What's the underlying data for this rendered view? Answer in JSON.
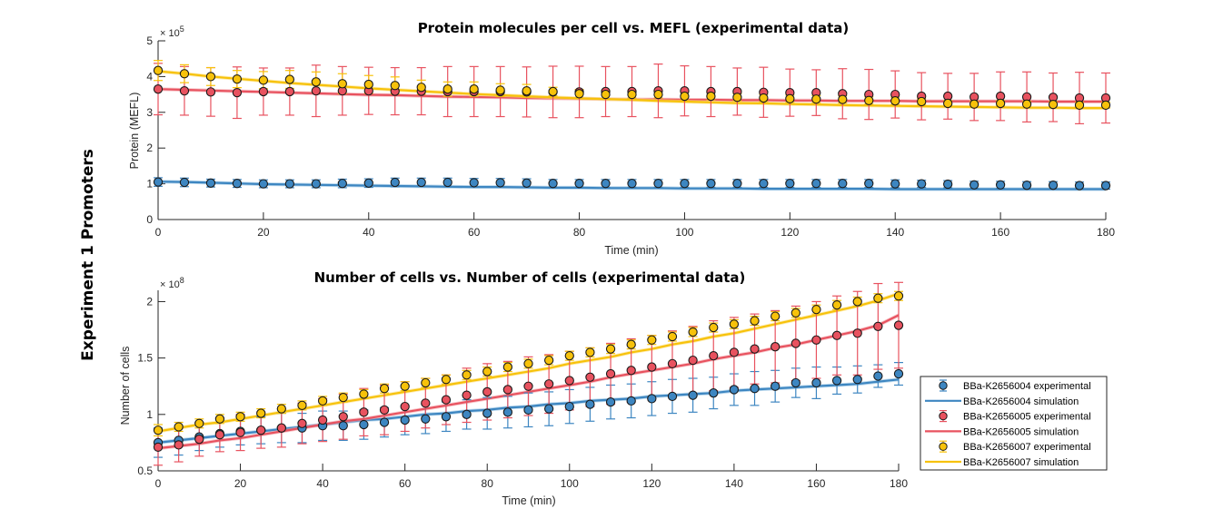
{
  "super_title": "Experiment 1 Promoters",
  "legend": {
    "placement": "bottom-right of lower chart",
    "entries": [
      {
        "label": "BBa-K2656004 experimental",
        "kind": "marker",
        "series": 0
      },
      {
        "label": "BBa-K2656004 simulation",
        "kind": "line",
        "series": 0
      },
      {
        "label": "BBa-K2656005 experimental",
        "kind": "marker",
        "series": 1
      },
      {
        "label": "BBa-K2656005 simulation",
        "kind": "line",
        "series": 1
      },
      {
        "label": "BBa-K2656007 experimental",
        "kind": "marker",
        "series": 2
      },
      {
        "label": "BBa-K2656007 simulation",
        "kind": "line",
        "series": 2
      }
    ]
  },
  "colors": {
    "BBa-K2656004": "#3d86c1",
    "BBa-K2656005": "#e8525f",
    "BBa-K2656007": "#f7c20a"
  },
  "chart_data": [
    {
      "type": "line",
      "title": "Protein molecules per cell vs. MEFL (experimental data)",
      "xlabel": "Time (min)",
      "ylabel": "Protein (MEFL)",
      "exponent_label": "× 10^5",
      "exponent_base": "× 10",
      "exponent_power": "5",
      "xlim": [
        0,
        180
      ],
      "ylim": [
        0,
        5
      ],
      "xticks": [
        0,
        20,
        40,
        60,
        80,
        100,
        120,
        140,
        160,
        180
      ],
      "yticks": [
        0,
        1,
        2,
        3,
        4,
        5
      ],
      "grid": false,
      "x": [
        0,
        5,
        10,
        15,
        20,
        25,
        30,
        35,
        40,
        45,
        50,
        55,
        60,
        65,
        70,
        75,
        80,
        85,
        90,
        95,
        100,
        105,
        110,
        115,
        120,
        125,
        130,
        135,
        140,
        145,
        150,
        155,
        160,
        165,
        170,
        175,
        180
      ],
      "series": [
        {
          "name": "BBa-K2656004",
          "experimental": [
            1.05,
            1.04,
            1.02,
            1.01,
            1.0,
            1.0,
            1.0,
            1.01,
            1.02,
            1.04,
            1.04,
            1.04,
            1.03,
            1.03,
            1.02,
            1.01,
            1.01,
            1.01,
            1.01,
            1.01,
            1.01,
            1.01,
            1.01,
            1.01,
            1.01,
            1.01,
            1.01,
            1.01,
            1.0,
            1.0,
            0.99,
            0.97,
            0.97,
            0.96,
            0.96,
            0.95,
            0.95
          ],
          "error": [
            0.12,
            0.12,
            0.11,
            0.11,
            0.11,
            0.11,
            0.11,
            0.12,
            0.12,
            0.12,
            0.12,
            0.12,
            0.12,
            0.12,
            0.12,
            0.11,
            0.11,
            0.11,
            0.11,
            0.11,
            0.11,
            0.11,
            0.11,
            0.11,
            0.11,
            0.11,
            0.11,
            0.11,
            0.11,
            0.1,
            0.1,
            0.1,
            0.1,
            0.1,
            0.1,
            0.1,
            0.1
          ],
          "simulation": [
            1.06,
            1.05,
            1.03,
            1.01,
            0.99,
            0.98,
            0.97,
            0.96,
            0.95,
            0.94,
            0.93,
            0.92,
            0.91,
            0.91,
            0.9,
            0.89,
            0.89,
            0.88,
            0.88,
            0.88,
            0.87,
            0.87,
            0.87,
            0.86,
            0.86,
            0.86,
            0.86,
            0.86,
            0.85,
            0.85,
            0.85,
            0.85,
            0.85,
            0.85,
            0.85,
            0.85,
            0.85
          ]
        },
        {
          "name": "BBa-K2656005",
          "experimental": [
            3.65,
            3.6,
            3.57,
            3.55,
            3.58,
            3.58,
            3.6,
            3.6,
            3.6,
            3.59,
            3.59,
            3.58,
            3.58,
            3.58,
            3.57,
            3.57,
            3.57,
            3.58,
            3.58,
            3.6,
            3.6,
            3.58,
            3.58,
            3.56,
            3.55,
            3.55,
            3.52,
            3.5,
            3.5,
            3.45,
            3.45,
            3.43,
            3.45,
            3.43,
            3.42,
            3.4,
            3.4
          ],
          "error": [
            0.72,
            0.68,
            0.68,
            0.72,
            0.66,
            0.66,
            0.72,
            0.68,
            0.66,
            0.66,
            0.66,
            0.7,
            0.7,
            0.7,
            0.7,
            0.72,
            0.72,
            0.7,
            0.7,
            0.75,
            0.7,
            0.7,
            0.66,
            0.7,
            0.66,
            0.64,
            0.7,
            0.7,
            0.66,
            0.66,
            0.64,
            0.66,
            0.68,
            0.7,
            0.68,
            0.72,
            0.7
          ],
          "simulation": [
            3.65,
            3.63,
            3.61,
            3.59,
            3.57,
            3.55,
            3.53,
            3.51,
            3.49,
            3.48,
            3.46,
            3.44,
            3.43,
            3.42,
            3.4,
            3.39,
            3.38,
            3.37,
            3.36,
            3.36,
            3.35,
            3.35,
            3.34,
            3.34,
            3.33,
            3.33,
            3.32,
            3.32,
            3.32,
            3.31,
            3.31,
            3.31,
            3.31,
            3.31,
            3.3,
            3.3,
            3.3
          ]
        },
        {
          "name": "BBa-K2656007",
          "experimental": [
            4.17,
            4.08,
            4.0,
            3.93,
            3.9,
            3.92,
            3.85,
            3.8,
            3.78,
            3.75,
            3.7,
            3.65,
            3.65,
            3.62,
            3.6,
            3.58,
            3.52,
            3.5,
            3.5,
            3.5,
            3.45,
            3.45,
            3.42,
            3.4,
            3.38,
            3.37,
            3.36,
            3.33,
            3.32,
            3.3,
            3.25,
            3.23,
            3.25,
            3.23,
            3.22,
            3.2,
            3.2
          ],
          "error": [
            0.28,
            0.25,
            0.25,
            0.24,
            0.24,
            0.25,
            0.28,
            0.28,
            0.25,
            0.24,
            0.2,
            0.2,
            0.2,
            0.18,
            0.18,
            0.12,
            0.12,
            0.12,
            0.1,
            0.1,
            0.1,
            0.1,
            0.1,
            0.1,
            0.1,
            0.1,
            0.1,
            0.1,
            0.1,
            0.08,
            0.08,
            0.08,
            0.08,
            0.08,
            0.08,
            0.08,
            0.08
          ],
          "simulation": [
            4.15,
            4.08,
            4.0,
            3.94,
            3.88,
            3.82,
            3.77,
            3.72,
            3.67,
            3.63,
            3.59,
            3.55,
            3.51,
            3.48,
            3.45,
            3.42,
            3.39,
            3.37,
            3.35,
            3.32,
            3.3,
            3.28,
            3.26,
            3.25,
            3.23,
            3.22,
            3.2,
            3.19,
            3.18,
            3.17,
            3.16,
            3.15,
            3.14,
            3.13,
            3.13,
            3.12,
            3.12
          ]
        }
      ]
    },
    {
      "type": "line",
      "title": "Number of cells vs. Number of cells (experimental data)",
      "xlabel": "Time (min)",
      "ylabel": "Number of cells",
      "exponent_label": "× 10^8",
      "exponent_base": "× 10",
      "exponent_power": "8",
      "xlim": [
        0,
        180
      ],
      "ylim": [
        0.5,
        2.1
      ],
      "xticks": [
        0,
        20,
        40,
        60,
        80,
        100,
        120,
        140,
        160,
        180
      ],
      "yticks": [
        0.5,
        1,
        1.5,
        2
      ],
      "ytick_labels": [
        "0.5",
        "1",
        "1.5",
        "2"
      ],
      "grid": false,
      "x": [
        0,
        5,
        10,
        15,
        20,
        25,
        30,
        35,
        40,
        45,
        50,
        55,
        60,
        65,
        70,
        75,
        80,
        85,
        90,
        95,
        100,
        105,
        110,
        115,
        120,
        125,
        130,
        135,
        140,
        145,
        150,
        155,
        160,
        165,
        170,
        175,
        180
      ],
      "series": [
        {
          "name": "BBa-K2656004",
          "experimental": [
            0.75,
            0.77,
            0.8,
            0.83,
            0.85,
            0.86,
            0.88,
            0.88,
            0.9,
            0.9,
            0.91,
            0.93,
            0.95,
            0.96,
            0.98,
            1.0,
            1.01,
            1.02,
            1.04,
            1.05,
            1.07,
            1.09,
            1.11,
            1.12,
            1.14,
            1.16,
            1.17,
            1.19,
            1.22,
            1.23,
            1.25,
            1.28,
            1.28,
            1.3,
            1.31,
            1.34,
            1.36
          ],
          "error": [
            0.13,
            0.13,
            0.12,
            0.12,
            0.12,
            0.12,
            0.13,
            0.13,
            0.13,
            0.13,
            0.13,
            0.13,
            0.13,
            0.13,
            0.13,
            0.13,
            0.14,
            0.14,
            0.15,
            0.15,
            0.15,
            0.15,
            0.15,
            0.15,
            0.15,
            0.15,
            0.15,
            0.14,
            0.14,
            0.15,
            0.14,
            0.13,
            0.14,
            0.12,
            0.12,
            0.1,
            0.1
          ],
          "simulation": [
            0.75,
            0.77,
            0.79,
            0.81,
            0.83,
            0.85,
            0.87,
            0.89,
            0.91,
            0.93,
            0.95,
            0.96,
            0.98,
            1.0,
            1.01,
            1.03,
            1.04,
            1.06,
            1.07,
            1.09,
            1.1,
            1.12,
            1.13,
            1.14,
            1.16,
            1.17,
            1.18,
            1.19,
            1.21,
            1.22,
            1.23,
            1.24,
            1.25,
            1.26,
            1.27,
            1.29,
            1.31
          ]
        },
        {
          "name": "BBa-K2656005",
          "experimental": [
            0.71,
            0.73,
            0.78,
            0.82,
            0.84,
            0.86,
            0.88,
            0.92,
            0.95,
            0.98,
            1.02,
            1.04,
            1.07,
            1.1,
            1.13,
            1.17,
            1.2,
            1.22,
            1.25,
            1.27,
            1.3,
            1.33,
            1.36,
            1.39,
            1.42,
            1.45,
            1.48,
            1.52,
            1.55,
            1.58,
            1.6,
            1.63,
            1.66,
            1.7,
            1.72,
            1.78,
            1.79
          ],
          "error": [
            0.16,
            0.15,
            0.15,
            0.15,
            0.16,
            0.16,
            0.17,
            0.18,
            0.19,
            0.2,
            0.21,
            0.22,
            0.22,
            0.22,
            0.22,
            0.24,
            0.25,
            0.25,
            0.26,
            0.26,
            0.26,
            0.26,
            0.27,
            0.28,
            0.28,
            0.29,
            0.3,
            0.31,
            0.31,
            0.31,
            0.32,
            0.33,
            0.34,
            0.35,
            0.37,
            0.38,
            0.38
          ],
          "simulation": [
            0.7,
            0.72,
            0.74,
            0.77,
            0.79,
            0.82,
            0.85,
            0.88,
            0.91,
            0.94,
            0.96,
            0.99,
            1.02,
            1.05,
            1.08,
            1.11,
            1.14,
            1.17,
            1.2,
            1.23,
            1.26,
            1.29,
            1.33,
            1.36,
            1.39,
            1.42,
            1.45,
            1.49,
            1.52,
            1.55,
            1.59,
            1.62,
            1.66,
            1.7,
            1.74,
            1.79,
            1.88
          ]
        },
        {
          "name": "BBa-K2656007",
          "experimental": [
            0.86,
            0.89,
            0.92,
            0.96,
            0.98,
            1.01,
            1.05,
            1.08,
            1.12,
            1.15,
            1.18,
            1.23,
            1.25,
            1.28,
            1.31,
            1.35,
            1.38,
            1.42,
            1.45,
            1.48,
            1.52,
            1.55,
            1.58,
            1.62,
            1.66,
            1.69,
            1.73,
            1.77,
            1.8,
            1.83,
            1.87,
            1.9,
            1.93,
            1.97,
            2.0,
            2.03,
            2.05
          ],
          "error": [
            0.05,
            0.04,
            0.04,
            0.04,
            0.04,
            0.04,
            0.04,
            0.04,
            0.04,
            0.04,
            0.04,
            0.04,
            0.04,
            0.04,
            0.04,
            0.04,
            0.04,
            0.04,
            0.04,
            0.04,
            0.04,
            0.04,
            0.04,
            0.04,
            0.04,
            0.04,
            0.04,
            0.04,
            0.04,
            0.04,
            0.04,
            0.04,
            0.04,
            0.04,
            0.04,
            0.04,
            0.04
          ],
          "simulation": [
            0.85,
            0.88,
            0.91,
            0.93,
            0.96,
            0.99,
            1.02,
            1.05,
            1.08,
            1.11,
            1.14,
            1.17,
            1.2,
            1.23,
            1.26,
            1.29,
            1.32,
            1.35,
            1.38,
            1.41,
            1.45,
            1.48,
            1.51,
            1.55,
            1.58,
            1.62,
            1.65,
            1.69,
            1.72,
            1.76,
            1.8,
            1.84,
            1.88,
            1.92,
            1.96,
            2.01,
            2.07
          ]
        }
      ]
    }
  ]
}
